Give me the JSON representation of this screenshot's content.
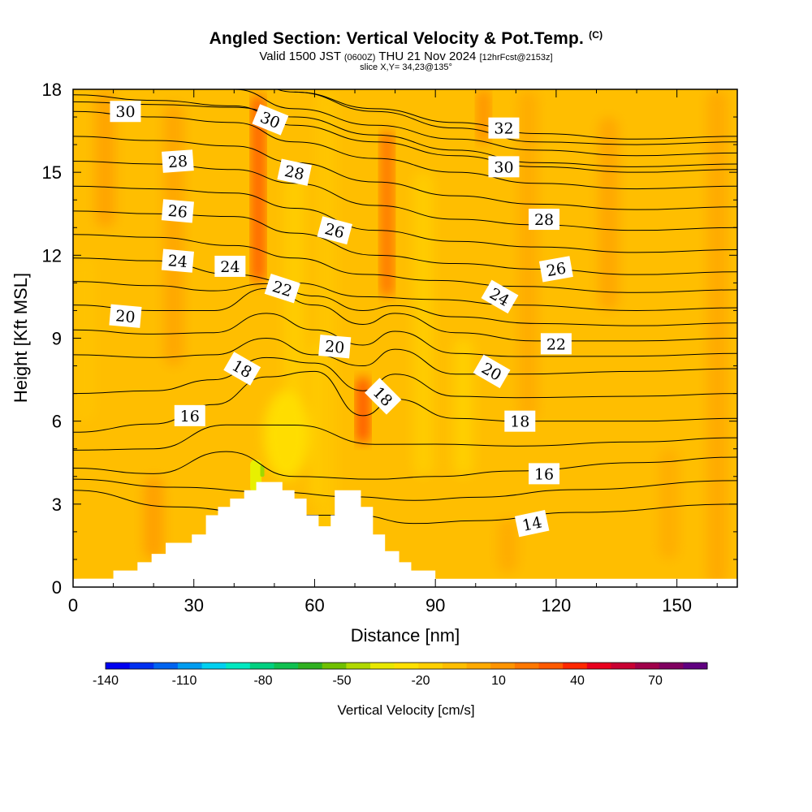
{
  "header": {
    "title": "Angled Section: Vertical Velocity & Pot.Temp.",
    "title_unit": "(C)",
    "valid_prefix": "Valid 1500 JST",
    "valid_utc": "(0600Z)",
    "valid_date": "THU 21 Nov 2024",
    "forecast": "[12hrFcst@2153z]",
    "slice": "slice X,Y= 34,23@135°"
  },
  "colorbar": {
    "label": "Vertical Velocity [cm/s]",
    "tick_labels": [
      "-140",
      "-110",
      "-80",
      "-50",
      "-20",
      "10",
      "40",
      "70"
    ],
    "colors": [
      "#0000f0",
      "#0030f0",
      "#0064f0",
      "#009cf0",
      "#00d0f0",
      "#00e8c0",
      "#00d080",
      "#10c050",
      "#30b020",
      "#70c000",
      "#b0d800",
      "#e8e800",
      "#ffe000",
      "#ffd000",
      "#ffbe00",
      "#ffaa00",
      "#ff9400",
      "#ff7800",
      "#ff5a00",
      "#ff2800",
      "#e8001e",
      "#c80032",
      "#a0004a",
      "#800060",
      "#600080"
    ]
  },
  "chart_data": {
    "type": "contour-cross-section",
    "xlabel": "Distance [nm]",
    "ylabel": "Height [Kft MSL]",
    "xlim": [
      0,
      165
    ],
    "ylim": [
      0,
      18
    ],
    "xticks": [
      0,
      30,
      60,
      90,
      120,
      150
    ],
    "yticks": [
      0,
      3,
      6,
      9,
      12,
      15,
      18
    ],
    "background_fill": "#ffbe00",
    "terrain": [
      [
        0,
        0.3
      ],
      [
        10,
        0.3
      ],
      [
        10,
        0.6
      ],
      [
        16,
        0.6
      ],
      [
        16,
        0.9
      ],
      [
        19.5,
        0.9
      ],
      [
        19.5,
        1.2
      ],
      [
        23,
        1.2
      ],
      [
        23,
        1.6
      ],
      [
        29.5,
        1.6
      ],
      [
        29.5,
        1.9
      ],
      [
        33,
        1.9
      ],
      [
        33,
        2.6
      ],
      [
        36,
        2.6
      ],
      [
        36,
        2.9
      ],
      [
        39,
        2.9
      ],
      [
        39,
        3.2
      ],
      [
        42.5,
        3.2
      ],
      [
        42.5,
        3.5
      ],
      [
        45.5,
        3.5
      ],
      [
        45.5,
        3.8
      ],
      [
        52,
        3.8
      ],
      [
        52,
        3.5
      ],
      [
        55,
        3.5
      ],
      [
        55,
        3.2
      ],
      [
        58,
        3.2
      ],
      [
        58,
        2.6
      ],
      [
        61,
        2.6
      ],
      [
        61,
        2.2
      ],
      [
        64,
        2.2
      ],
      [
        64,
        2.6
      ],
      [
        65,
        2.6
      ],
      [
        65,
        3.5
      ],
      [
        71.5,
        3.5
      ],
      [
        71.5,
        2.9
      ],
      [
        74.5,
        2.9
      ],
      [
        74.5,
        1.9
      ],
      [
        77.5,
        1.9
      ],
      [
        77.5,
        1.3
      ],
      [
        81,
        1.3
      ],
      [
        81,
        0.9
      ],
      [
        84,
        0.9
      ],
      [
        84,
        0.6
      ],
      [
        90,
        0.6
      ],
      [
        90,
        0
      ]
    ],
    "updrafts": [
      {
        "x": 46,
        "y_range": [
          11,
          17.8
        ],
        "color": "#ff6400"
      },
      {
        "x": 72,
        "y_range": [
          5.2,
          7.6
        ],
        "color": "#ff5a00"
      },
      {
        "x": 78,
        "y_range": [
          10.5,
          16.5
        ],
        "color": "#ff7800"
      },
      {
        "x": 102,
        "y_range": [
          16,
          18
        ],
        "color": "#ff9400"
      }
    ],
    "theta_contours": [
      {
        "value": 14,
        "points": [
          [
            0,
            3.5
          ],
          [
            25,
            2.9
          ],
          [
            50,
            2.6
          ],
          [
            70,
            2.6
          ],
          [
            85,
            2.3
          ],
          [
            100,
            2.4
          ],
          [
            125,
            2.7
          ],
          [
            165,
            3.0
          ]
        ]
      },
      {
        "value": 16,
        "points": [
          [
            0,
            4.3
          ],
          [
            20,
            4.1
          ],
          [
            38,
            4.9
          ],
          [
            55,
            4.0
          ],
          [
            75,
            3.9
          ],
          [
            90,
            4.0
          ],
          [
            110,
            4.2
          ],
          [
            140,
            4.5
          ],
          [
            165,
            4.7
          ]
        ]
      },
      {
        "value": 18,
        "points": [
          [
            0,
            5.6
          ],
          [
            20,
            5.9
          ],
          [
            35,
            6.6
          ],
          [
            48,
            7.6
          ],
          [
            60,
            7.8
          ],
          [
            72,
            6.2
          ],
          [
            80,
            6.8
          ],
          [
            95,
            6.1
          ],
          [
            110,
            6.0
          ],
          [
            140,
            6.0
          ],
          [
            165,
            6.1
          ]
        ]
      },
      {
        "value": 20,
        "points": [
          [
            0,
            8.4
          ],
          [
            20,
            8.3
          ],
          [
            35,
            8.4
          ],
          [
            48,
            9.0
          ],
          [
            60,
            8.4
          ],
          [
            72,
            8.0
          ],
          [
            80,
            8.6
          ],
          [
            95,
            7.7
          ],
          [
            110,
            7.7
          ],
          [
            140,
            7.8
          ],
          [
            165,
            7.9
          ]
        ]
      },
      {
        "value": 22,
        "points": [
          [
            0,
            10.2
          ],
          [
            20,
            10.0
          ],
          [
            35,
            10.0
          ],
          [
            48,
            10.8
          ],
          [
            60,
            10.2
          ],
          [
            72,
            9.5
          ],
          [
            80,
            9.9
          ],
          [
            95,
            9.2
          ],
          [
            115,
            8.9
          ],
          [
            140,
            8.9
          ],
          [
            165,
            9.0
          ]
        ]
      },
      {
        "value": 24,
        "points": [
          [
            0,
            11.9
          ],
          [
            20,
            11.8
          ],
          [
            40,
            11.3
          ],
          [
            55,
            11.0
          ],
          [
            72,
            10.5
          ],
          [
            90,
            10.4
          ],
          [
            110,
            10.2
          ],
          [
            140,
            10.0
          ],
          [
            165,
            10.1
          ]
        ]
      },
      {
        "value": 26,
        "points": [
          [
            0,
            13.6
          ],
          [
            20,
            13.5
          ],
          [
            40,
            13.4
          ],
          [
            55,
            12.8
          ],
          [
            75,
            12.0
          ],
          [
            95,
            11.7
          ],
          [
            115,
            11.5
          ],
          [
            140,
            11.3
          ],
          [
            165,
            11.4
          ]
        ]
      },
      {
        "value": 28,
        "points": [
          [
            0,
            15.4
          ],
          [
            20,
            15.3
          ],
          [
            40,
            15.1
          ],
          [
            55,
            14.6
          ],
          [
            75,
            13.8
          ],
          [
            95,
            13.3
          ],
          [
            115,
            13.1
          ],
          [
            140,
            12.9
          ],
          [
            165,
            13.0
          ]
        ]
      },
      {
        "value": 30,
        "points": [
          [
            0,
            17.2
          ],
          [
            20,
            17.0
          ],
          [
            40,
            16.8
          ],
          [
            55,
            16.1
          ],
          [
            75,
            15.5
          ],
          [
            95,
            15.0
          ],
          [
            115,
            14.6
          ],
          [
            140,
            14.4
          ],
          [
            165,
            14.5
          ]
        ]
      },
      {
        "value": 32,
        "points": [
          [
            55,
            17.9
          ],
          [
            75,
            17.2
          ],
          [
            95,
            16.6
          ],
          [
            115,
            16.1
          ],
          [
            140,
            16.0
          ],
          [
            165,
            16.1
          ]
        ]
      }
    ],
    "contour_labels": [
      {
        "text": "30",
        "x": 13,
        "y": 17.2,
        "angle": 0
      },
      {
        "text": "30",
        "x": 49,
        "y": 16.9,
        "angle": 22
      },
      {
        "text": "32",
        "x": 107,
        "y": 16.6,
        "angle": 0
      },
      {
        "text": "28",
        "x": 26,
        "y": 15.4,
        "angle": -4
      },
      {
        "text": "28",
        "x": 55,
        "y": 15.0,
        "angle": 12
      },
      {
        "text": "30",
        "x": 107,
        "y": 15.2,
        "angle": 0
      },
      {
        "text": "26",
        "x": 26,
        "y": 13.6,
        "angle": 5
      },
      {
        "text": "26",
        "x": 65,
        "y": 12.9,
        "angle": 15
      },
      {
        "text": "28",
        "x": 117,
        "y": 13.3,
        "angle": 0
      },
      {
        "text": "24",
        "x": 26,
        "y": 11.8,
        "angle": 5
      },
      {
        "text": "24",
        "x": 39,
        "y": 11.6,
        "angle": 0
      },
      {
        "text": "22",
        "x": 52,
        "y": 10.8,
        "angle": 18
      },
      {
        "text": "24",
        "x": 106,
        "y": 10.5,
        "angle": 30
      },
      {
        "text": "26",
        "x": 120,
        "y": 11.5,
        "angle": -10
      },
      {
        "text": "20",
        "x": 13,
        "y": 9.8,
        "angle": 5
      },
      {
        "text": "20",
        "x": 65,
        "y": 8.7,
        "angle": 5
      },
      {
        "text": "22",
        "x": 120,
        "y": 8.8,
        "angle": 0
      },
      {
        "text": "18",
        "x": 42,
        "y": 7.9,
        "angle": 30
      },
      {
        "text": "20",
        "x": 104,
        "y": 7.8,
        "angle": 30
      },
      {
        "text": "18",
        "x": 77,
        "y": 6.9,
        "angle": 45
      },
      {
        "text": "16",
        "x": 29,
        "y": 6.2,
        "angle": 0
      },
      {
        "text": "18",
        "x": 111,
        "y": 6.0,
        "angle": 0
      },
      {
        "text": "16",
        "x": 117,
        "y": 4.1,
        "angle": 0
      },
      {
        "text": "14",
        "x": 114,
        "y": 2.3,
        "angle": -12
      }
    ]
  }
}
